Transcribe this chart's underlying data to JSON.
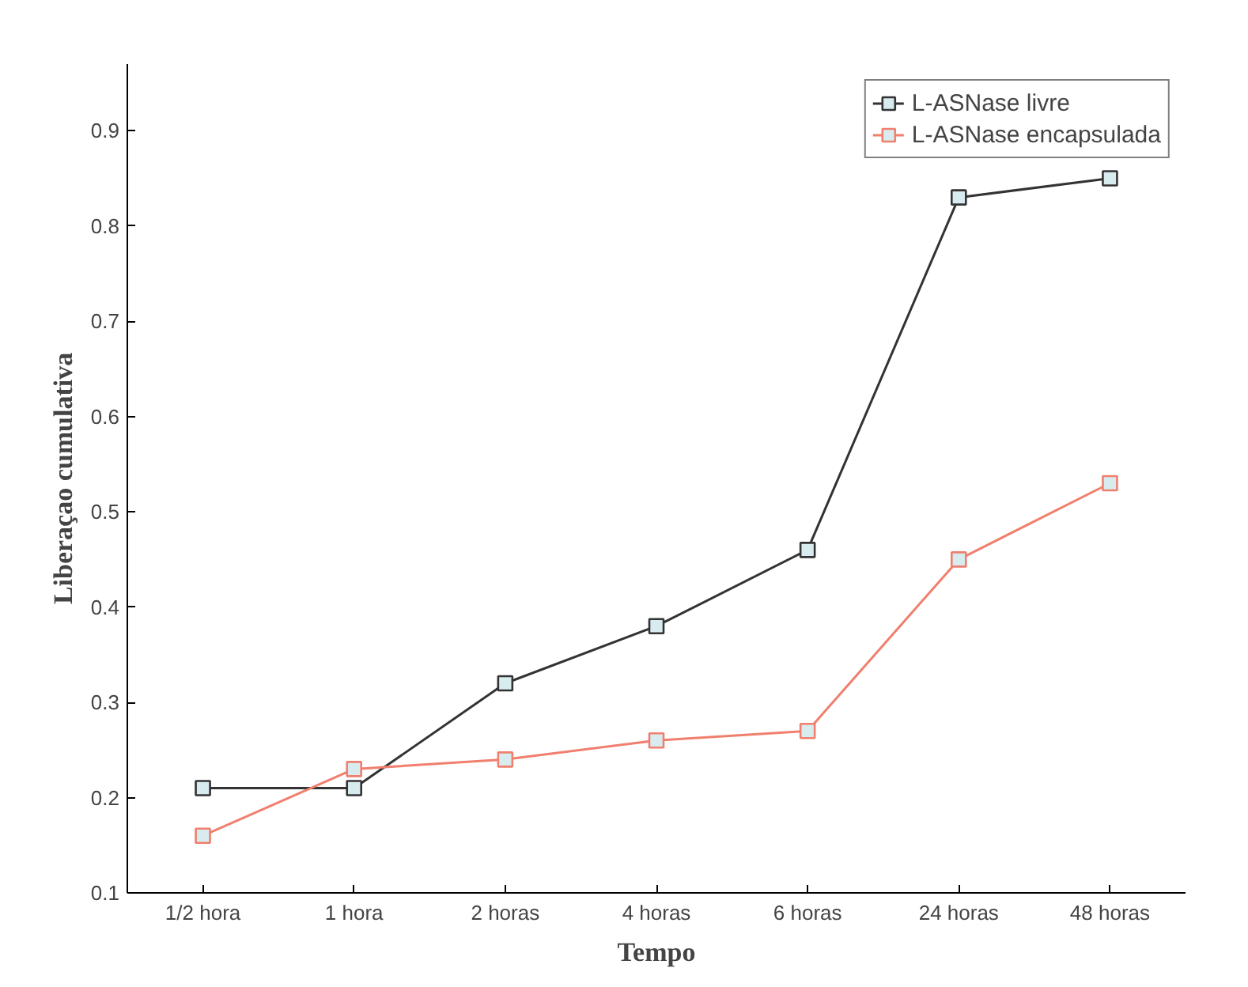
{
  "chart_data": {
    "type": "line",
    "xlabel": "Tempo",
    "ylabel": "Liberaçao cumulativa",
    "categories": [
      "1/2 hora",
      "1 hora",
      "2 horas",
      "4 horas",
      "6 horas",
      "24 horas",
      "48 horas"
    ],
    "series": [
      {
        "name": "L-ASNase livre",
        "color": "#333333",
        "values": [
          0.21,
          0.21,
          0.32,
          0.38,
          0.46,
          0.83,
          0.85
        ]
      },
      {
        "name": "L-ASNase encapsulada",
        "color": "#f07f6e",
        "values": [
          0.16,
          0.23,
          0.24,
          0.26,
          0.27,
          0.45,
          0.53
        ]
      }
    ],
    "ylim": [
      0.1,
      0.97
    ],
    "yticks": [
      0.1,
      0.2,
      0.3,
      0.4,
      0.5,
      0.6,
      0.7,
      0.8,
      0.9
    ],
    "marker": "square",
    "line_style": "solid",
    "grid": false,
    "legend": "top right"
  }
}
